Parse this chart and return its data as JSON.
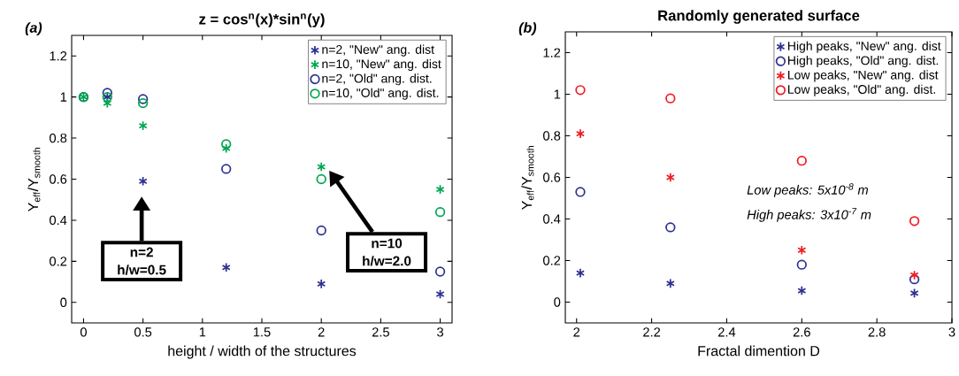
{
  "chart_data": [
    {
      "type": "scatter",
      "title": "z = cos$^{n}$(x)*sin$^{n}$(y)",
      "xlabel": "height / width of the structures",
      "ylabel": "Y$_{eff}$/Y$_{smooth}$",
      "x": [
        0,
        0.2,
        0.5,
        1.2,
        2,
        3
      ],
      "series": [
        {
          "name": "n=2, \"New\" ang. dist",
          "color": "#2e3192",
          "marker": "cross",
          "values": [
            null,
            1.0,
            0.59,
            0.17,
            0.09,
            0.04
          ]
        },
        {
          "name": "n=10, \"New\" ang. dist",
          "color": "#00a651",
          "marker": "cross",
          "values": [
            1.0,
            0.97,
            0.86,
            0.75,
            0.66,
            0.55
          ]
        },
        {
          "name": "n=2, \"Old\" ang. dist.",
          "color": "#2e3192",
          "marker": "circle",
          "values": [
            1.0,
            1.02,
            0.99,
            0.65,
            0.35,
            0.15
          ]
        },
        {
          "name": "n=10, \"Old\" ang. dist.",
          "color": "#00a651",
          "marker": "circle",
          "values": [
            1.0,
            1.0,
            0.97,
            0.77,
            0.6,
            0.44
          ]
        }
      ],
      "xlim": [
        -0.1,
        3.1
      ],
      "ylim": [
        -0.1,
        1.3
      ],
      "xticks": [
        0,
        0.5,
        1,
        1.5,
        2,
        2.5,
        3
      ],
      "yticks": [
        0,
        0.2,
        0.4,
        0.6,
        0.8,
        1,
        1.2
      ],
      "legend": "top right",
      "grid": false,
      "annotations": [
        "(a)",
        "n=2 h/w=0.5",
        "n=10 h/w=2.0"
      ]
    },
    {
      "type": "scatter",
      "title": "Randomly generated surface",
      "xlabel": "Fractal dimention D",
      "ylabel": "Y$_{eff}$/Y$_{smooth}$",
      "x": [
        2.01,
        2.25,
        2.6,
        2.9
      ],
      "series": [
        {
          "name": "High peaks, \"New\" ang. dist",
          "color": "#2e3192",
          "marker": "cross",
          "values": [
            0.14,
            0.09,
            0.055,
            0.043
          ]
        },
        {
          "name": "High peaks, \"Old\" ang. dist.",
          "color": "#2e3192",
          "marker": "circle",
          "values": [
            0.53,
            0.36,
            0.18,
            0.11
          ]
        },
        {
          "name": "Low peaks, \"New\" ang. dist",
          "color": "#ed1c24",
          "marker": "cross",
          "values": [
            0.81,
            0.6,
            0.25,
            0.13
          ]
        },
        {
          "name": "Low peaks, \"Old\" ang. dist.",
          "color": "#ed1c24",
          "marker": "circle",
          "values": [
            1.02,
            0.98,
            0.68,
            0.39
          ]
        }
      ],
      "xlim": [
        1.97,
        3
      ],
      "ylim": [
        -0.1,
        1.3
      ],
      "xticks": [
        2,
        2.2,
        2.4,
        2.6,
        2.8,
        3
      ],
      "yticks": [
        0,
        0.2,
        0.4,
        0.6,
        0.8,
        1,
        1.2
      ],
      "legend": "top right",
      "grid": false,
      "annotations": [
        "(b)",
        "Low peaks: 5x10$^{-8}$ m",
        "High peaks:  3x10$^{-7}$ m"
      ]
    }
  ]
}
